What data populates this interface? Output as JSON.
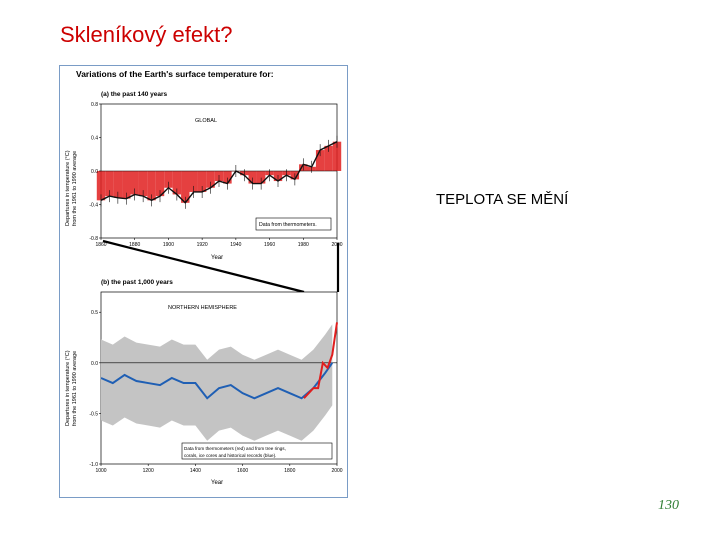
{
  "slide": {
    "title": "Skleníkový efekt?",
    "caption": "TEPLOTA SE MĚNÍ",
    "page_number": "130",
    "colors": {
      "title": "#cc0000",
      "page_number": "#2e7d32",
      "figure_border": "#7a9cc6"
    }
  },
  "figure": {
    "heading": "Variations of the Earth's surface temperature for:",
    "panel_a": {
      "label": "(a) the past 140 years",
      "region": "GLOBAL",
      "legend": "Data from thermometers.",
      "ylabel_1": "Departures in temperature (°C)",
      "ylabel_2": "from the 1961 to 1990 average",
      "xlabel": "Year",
      "xticks": [
        "1860",
        "1880",
        "1900",
        "1920",
        "1940",
        "1960",
        "1980",
        "2000"
      ],
      "yticks": [
        "0.8",
        "0.4",
        "0.0",
        "-0.4",
        "-0.8"
      ]
    },
    "panel_b": {
      "label": "(b) the past 1,000 years",
      "region": "NORTHERN HEMISPHERE",
      "legend_1": "Data from thermometers (red) and from tree rings,",
      "legend_2": "corals, ice cores and historical records (blue).",
      "ylabel_1": "Departures in temperature (°C)",
      "ylabel_2": "from the 1961 to 1990 average",
      "xlabel": "Year",
      "xticks": [
        "1000",
        "1200",
        "1400",
        "1600",
        "1800",
        "2000"
      ],
      "yticks": [
        "0.5",
        "0.0",
        "-0.5",
        "-1.0"
      ]
    }
  },
  "chart_data": [
    {
      "type": "bar",
      "title": "(a) the past 140 years",
      "xlabel": "Year",
      "ylabel": "Departures in temperature (°C) from the 1961 to 1990 average",
      "xlim": [
        1860,
        2000
      ],
      "ylim": [
        -0.8,
        0.8
      ],
      "series": [
        {
          "name": "Data from thermometers.",
          "x": [
            1860,
            1865,
            1870,
            1875,
            1880,
            1885,
            1890,
            1895,
            1900,
            1905,
            1910,
            1915,
            1920,
            1925,
            1930,
            1935,
            1940,
            1945,
            1950,
            1955,
            1960,
            1965,
            1970,
            1975,
            1980,
            1985,
            1990,
            1995,
            2000
          ],
          "values": [
            -0.35,
            -0.3,
            -0.32,
            -0.33,
            -0.28,
            -0.3,
            -0.35,
            -0.3,
            -0.2,
            -0.28,
            -0.38,
            -0.25,
            -0.25,
            -0.2,
            -0.12,
            -0.15,
            0.0,
            -0.05,
            -0.15,
            -0.15,
            -0.05,
            -0.12,
            -0.05,
            -0.1,
            0.08,
            0.05,
            0.25,
            0.3,
            0.35
          ]
        }
      ]
    },
    {
      "type": "line",
      "title": "(b) the past 1,000 years",
      "xlabel": "Year",
      "ylabel": "Departures in temperature (°C) from the 1961 to 1990 average",
      "xlim": [
        1000,
        2000
      ],
      "ylim": [
        -1.0,
        0.7
      ],
      "series": [
        {
          "name": "Data from tree rings, corals, ice cores and historical records (blue)",
          "x": [
            1000,
            1050,
            1100,
            1150,
            1200,
            1250,
            1300,
            1350,
            1400,
            1450,
            1500,
            1550,
            1600,
            1650,
            1700,
            1750,
            1800,
            1850,
            1900,
            1950,
            1980
          ],
          "values": [
            -0.15,
            -0.2,
            -0.12,
            -0.18,
            -0.2,
            -0.22,
            -0.15,
            -0.2,
            -0.2,
            -0.35,
            -0.25,
            -0.22,
            -0.3,
            -0.35,
            -0.3,
            -0.25,
            -0.3,
            -0.35,
            -0.25,
            -0.1,
            0.0
          ]
        },
        {
          "name": "Data from thermometers (red)",
          "x": [
            1860,
            1880,
            1900,
            1920,
            1940,
            1960,
            1980,
            2000
          ],
          "values": [
            -0.35,
            -0.3,
            -0.25,
            -0.25,
            0.0,
            -0.05,
            0.08,
            0.4
          ]
        }
      ]
    }
  ]
}
